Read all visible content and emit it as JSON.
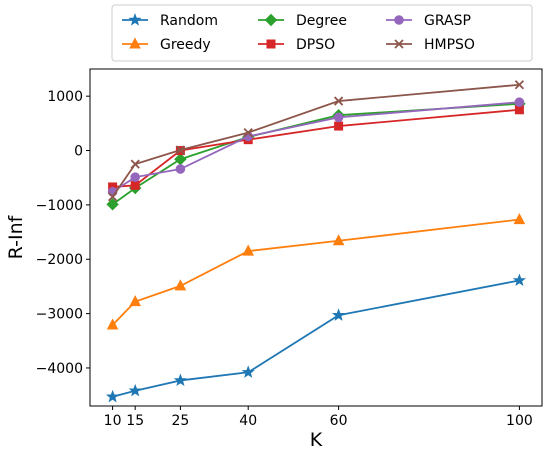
{
  "chart_data": {
    "type": "line",
    "title": "",
    "xlabel": "K",
    "ylabel": "R-Inf",
    "x": [
      10,
      15,
      25,
      40,
      60,
      100
    ],
    "xticks": [
      "10",
      "15",
      "25",
      "40",
      "60",
      "100"
    ],
    "yticks": [
      "−4000",
      "−3000",
      "−2000",
      "−1000",
      "0",
      "1000"
    ],
    "xlim": [
      5,
      105
    ],
    "ylim": [
      -4700,
      1500
    ],
    "grid": false,
    "legend_placement": "top-center",
    "series": [
      {
        "name": "Random",
        "color": "#1f77b4",
        "marker": "star",
        "values": [
          -4530,
          -4420,
          -4230,
          -4080,
          -3030,
          -2390
        ]
      },
      {
        "name": "Greedy",
        "color": "#ff7f0e",
        "marker": "triangle-up",
        "values": [
          -3210,
          -2780,
          -2490,
          -1850,
          -1660,
          -1270
        ]
      },
      {
        "name": "Degree",
        "color": "#2ca02c",
        "marker": "diamond",
        "values": [
          -990,
          -690,
          -160,
          250,
          650,
          860
        ]
      },
      {
        "name": "DPSO",
        "color": "#d62728",
        "marker": "square",
        "values": [
          -670,
          -640,
          0,
          200,
          450,
          750
        ]
      },
      {
        "name": "GRASP",
        "color": "#9467bd",
        "marker": "circle",
        "values": [
          -760,
          -490,
          -340,
          260,
          610,
          890
        ]
      },
      {
        "name": "HMPSO",
        "color": "#8c564b",
        "marker": "x",
        "values": [
          -850,
          -250,
          10,
          330,
          910,
          1210
        ]
      }
    ]
  }
}
